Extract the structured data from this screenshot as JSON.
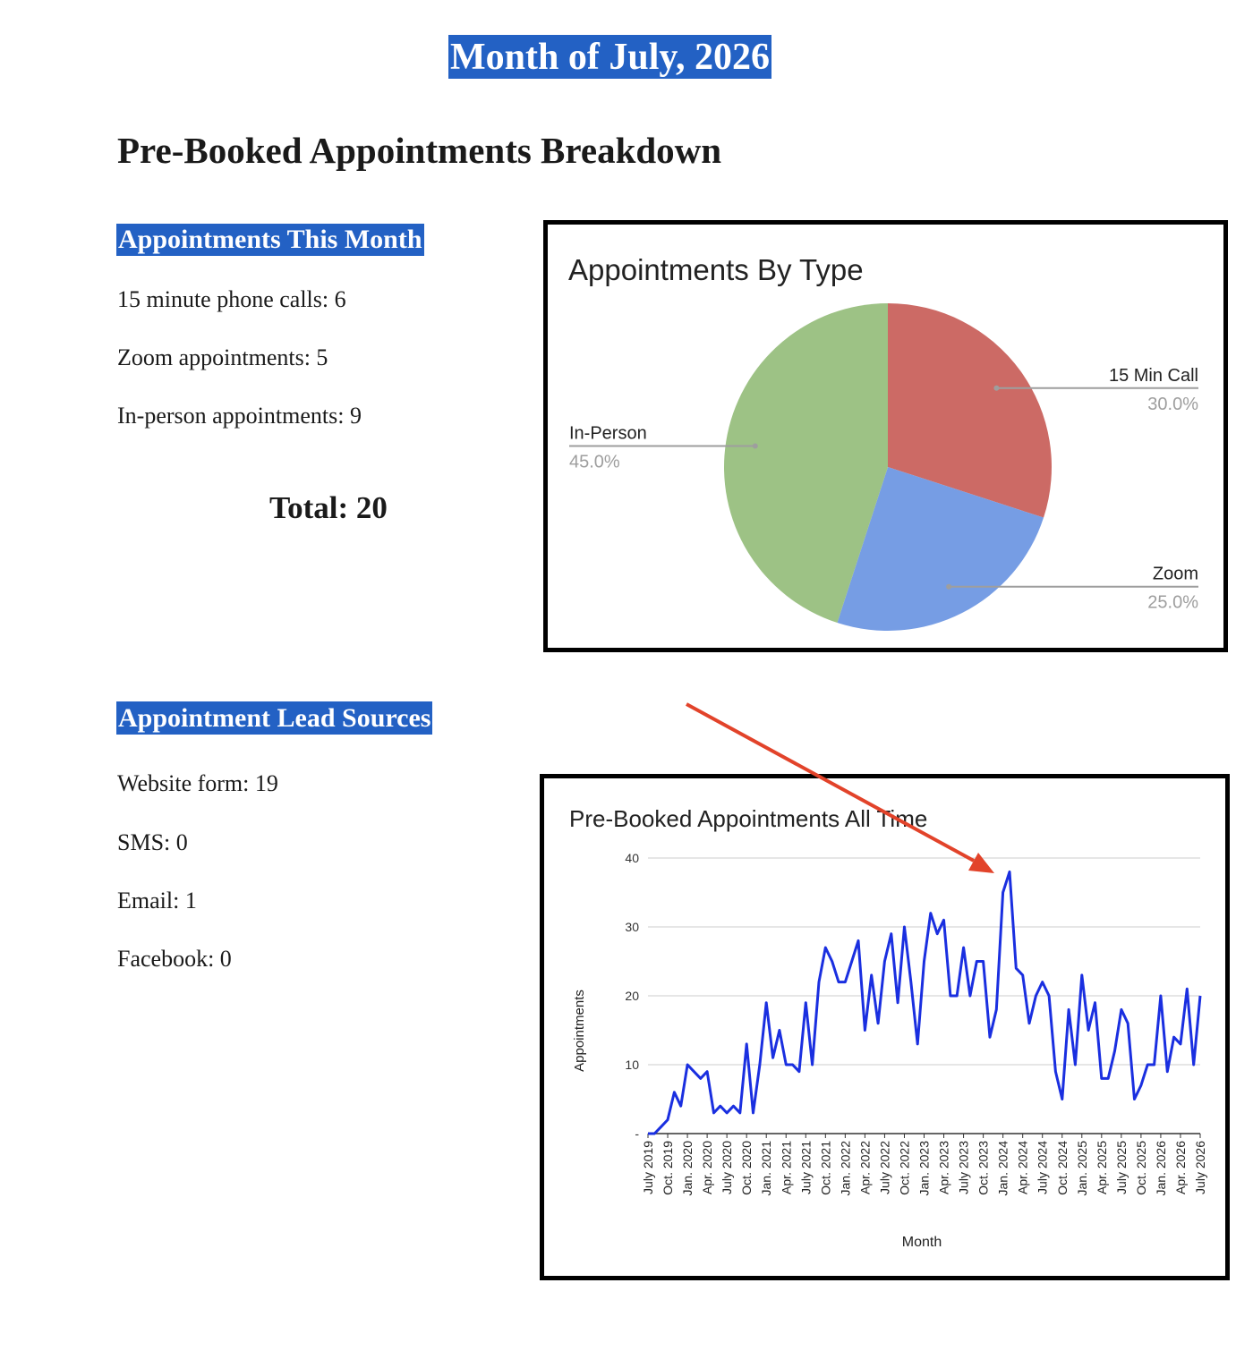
{
  "header": {
    "month_title": "Month of July, 2026",
    "section_heading": "Pre-Booked Appointments Breakdown"
  },
  "appointments_this_month": {
    "heading": "Appointments This Month",
    "items": [
      "15 minute phone calls: 6",
      "Zoom appointments: 5",
      "In-person appointments: 9"
    ],
    "total": "Total: 20"
  },
  "lead_sources": {
    "heading": "Appointment Lead Sources",
    "items": [
      "Website form: 19",
      "SMS: 0",
      "Email: 1",
      "Facebook: 0"
    ]
  },
  "colors": {
    "heading_highlight": "#2361c4",
    "pie_15_min_call": "#cc6a65",
    "pie_zoom": "#769de4",
    "pie_in_person": "#9dc285",
    "line_series": "#1a2fe0",
    "annotation_arrow": "#e2432a"
  },
  "chart_data": [
    {
      "type": "pie",
      "title": "Appointments By Type",
      "labels": [
        "15 Min Call",
        "Zoom",
        "In-Person"
      ],
      "values": [
        30.0,
        25.0,
        45.0
      ],
      "value_labels": [
        "30.0%",
        "25.0%",
        "45.0%"
      ],
      "colors": [
        "#cc6a65",
        "#769de4",
        "#9dc285"
      ],
      "legend": "labeled-slices"
    },
    {
      "type": "line",
      "title": "Pre-Booked Appointments All Time",
      "xlabel": "Month",
      "ylabel": "Appointments",
      "ylim": [
        0,
        40
      ],
      "yticks": [
        0,
        10,
        20,
        30,
        40
      ],
      "ytick_labels": [
        "-",
        "10",
        "20",
        "30",
        "40"
      ],
      "grid": true,
      "xtick_labels": [
        "July 2019",
        "Oct. 2019",
        "Jan. 2020",
        "Apr. 2020",
        "July 2020",
        "Oct. 2020",
        "Jan. 2021",
        "Apr. 2021",
        "July 2021",
        "Oct. 2021",
        "Jan. 2022",
        "Apr. 2022",
        "July 2022",
        "Oct. 2022",
        "Jan. 2023",
        "Apr. 2023",
        "July 2023",
        "Oct. 2023",
        "Jan. 2024",
        "Apr. 2024",
        "July 2024",
        "Oct. 2024",
        "Jan. 2025",
        "Apr. 2025",
        "July 2025",
        "Oct. 2025",
        "Jan. 2026",
        "Apr. 2026",
        "July 2026"
      ],
      "x_start": "July 2019",
      "x_end": "July 2026",
      "x_step": "1 month",
      "series": [
        {
          "values": [
            0,
            0,
            1,
            2,
            6,
            4,
            10,
            9,
            8,
            9,
            3,
            4,
            3,
            4,
            3,
            13,
            3,
            10,
            19,
            11,
            15,
            10,
            10,
            9,
            19,
            10,
            22,
            27,
            25,
            22,
            22,
            25,
            28,
            15,
            23,
            16,
            25,
            29,
            19,
            30,
            22,
            13,
            25,
            32,
            29,
            31,
            20,
            20,
            27,
            20,
            25,
            25,
            14,
            18,
            35,
            38,
            24,
            23,
            16,
            20,
            22,
            20,
            9,
            5,
            18,
            10,
            23,
            15,
            19,
            8,
            8,
            12,
            18,
            16,
            5,
            7,
            10,
            10,
            20,
            9,
            14,
            13,
            21,
            10,
            20
          ]
        }
      ]
    }
  ]
}
